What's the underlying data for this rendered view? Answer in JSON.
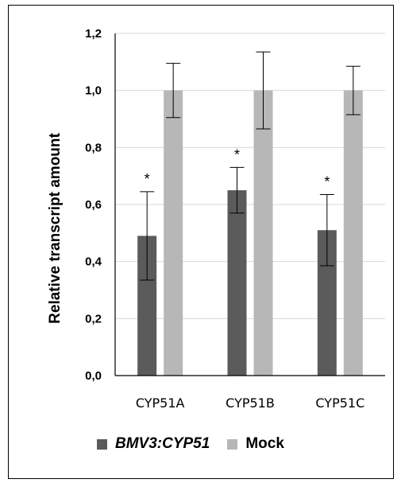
{
  "chart_data": {
    "type": "bar",
    "categories": [
      "CYP51A",
      "CYP51B",
      "CYP51C"
    ],
    "series": [
      {
        "name": "BMV3:CYP51",
        "values": [
          0.49,
          0.65,
          0.51
        ],
        "errors": [
          0.155,
          0.08,
          0.125
        ],
        "color": "#5b5b5b",
        "significance": [
          "*",
          "*",
          "*"
        ]
      },
      {
        "name": "Mock",
        "values": [
          1.0,
          1.0,
          1.0
        ],
        "errors": [
          0.095,
          0.135,
          0.085
        ],
        "color": "#b7b7b7",
        "significance": [
          "",
          "",
          ""
        ]
      }
    ],
    "ylabel": "Relative transcript amount",
    "ylim": [
      0,
      1.2
    ],
    "yticks": [
      "0,0",
      "0,2",
      "0,4",
      "0,6",
      "0,8",
      "1,0",
      "1,2"
    ],
    "grid": true,
    "legend_position": "bottom"
  }
}
